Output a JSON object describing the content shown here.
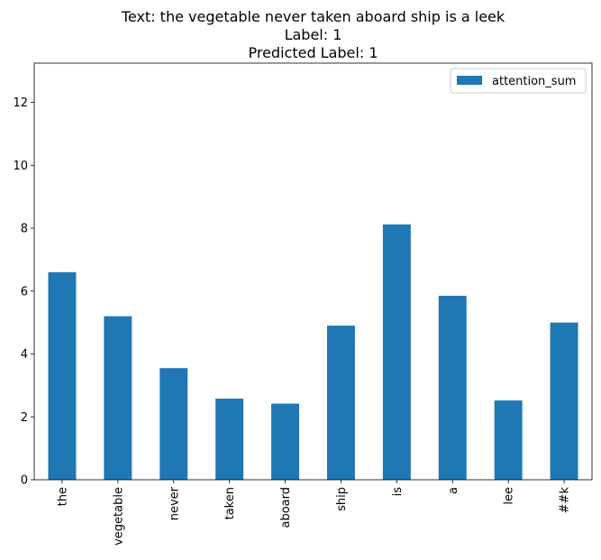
{
  "chart_data": {
    "type": "bar",
    "title_lines": [
      "Text: the vegetable never taken aboard ship is a leek",
      "Label: 1",
      "Predicted Label: 1"
    ],
    "categories": [
      "the",
      "vegetable",
      "never",
      "taken",
      "aboard",
      "ship",
      "is",
      "a",
      "lee",
      "##k"
    ],
    "series": [
      {
        "name": "attention_sum",
        "values": [
          6.6,
          5.2,
          3.55,
          2.58,
          2.42,
          4.9,
          8.12,
          5.85,
          2.52,
          5.0
        ],
        "color": "#1f77b4"
      }
    ],
    "y_ticks": [
      0,
      2,
      4,
      6,
      8,
      10,
      12
    ],
    "ylim": [
      0,
      13.25
    ],
    "xlabel": "",
    "ylabel": "",
    "grid": false,
    "legend_position": "top-right"
  }
}
